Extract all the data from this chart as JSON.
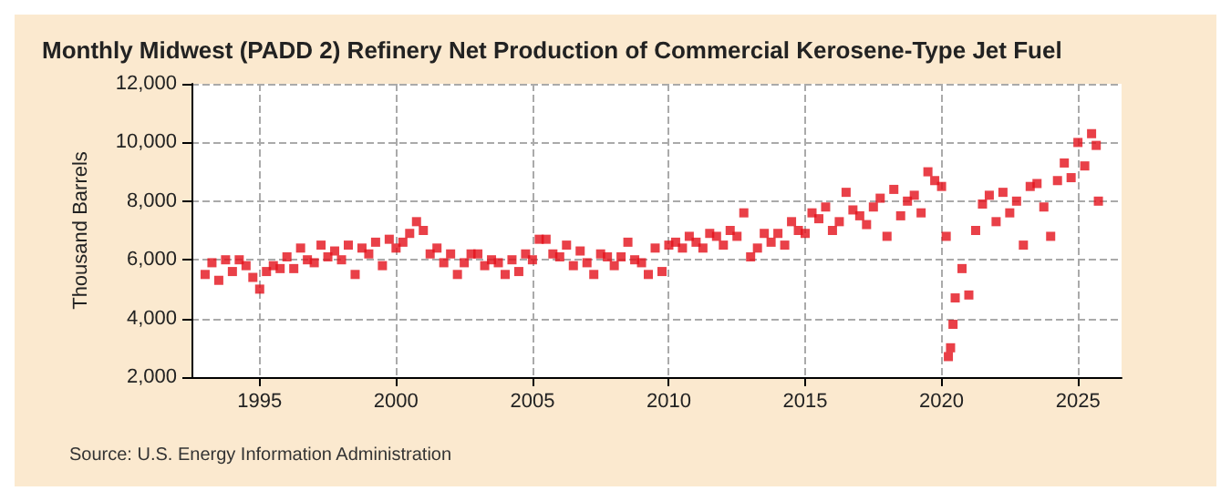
{
  "chart_data": {
    "type": "scatter",
    "title": "Monthly Midwest (PADD 2) Refinery Net Production of Commercial Kerosene-Type Jet Fuel",
    "ylabel": "Thousand Barrels",
    "annotations": [
      "Source: U.S. Energy Information Administration"
    ],
    "x": [
      1993.0,
      1993.25,
      1993.5,
      1993.75,
      1994.0,
      1994.25,
      1994.5,
      1994.75,
      1995.0,
      1995.25,
      1995.5,
      1995.75,
      1996.0,
      1996.25,
      1996.5,
      1996.75,
      1997.0,
      1997.25,
      1997.5,
      1997.75,
      1998.0,
      1998.25,
      1998.5,
      1998.75,
      1999.0,
      1999.25,
      1999.5,
      1999.75,
      2000.0,
      2000.25,
      2000.5,
      2000.75,
      2001.0,
      2001.25,
      2001.5,
      2001.75,
      2002.0,
      2002.25,
      2002.5,
      2002.75,
      2003.0,
      2003.25,
      2003.5,
      2003.75,
      2004.0,
      2004.25,
      2004.5,
      2004.75,
      2005.0,
      2005.25,
      2005.5,
      2005.75,
      2006.0,
      2006.25,
      2006.5,
      2006.75,
      2007.0,
      2007.25,
      2007.5,
      2007.75,
      2008.0,
      2008.25,
      2008.5,
      2008.75,
      2009.0,
      2009.25,
      2009.5,
      2009.75,
      2010.0,
      2010.25,
      2010.5,
      2010.75,
      2011.0,
      2011.25,
      2011.5,
      2011.75,
      2012.0,
      2012.25,
      2012.5,
      2012.75,
      2013.0,
      2013.25,
      2013.5,
      2013.75,
      2014.0,
      2014.25,
      2014.5,
      2014.75,
      2015.0,
      2015.25,
      2015.5,
      2015.75,
      2016.0,
      2016.25,
      2016.5,
      2016.75,
      2017.0,
      2017.25,
      2017.5,
      2017.75,
      2018.0,
      2018.25,
      2018.5,
      2018.75,
      2019.0,
      2019.25,
      2019.5,
      2019.75,
      2020.0,
      2020.17,
      2020.25,
      2020.33,
      2020.42,
      2020.5,
      2020.75,
      2021.0,
      2021.25,
      2021.5,
      2021.75,
      2022.0,
      2022.25,
      2022.5,
      2022.75,
      2023.0,
      2023.25,
      2023.5,
      2023.75,
      2024.0,
      2024.25,
      2024.5,
      2024.75,
      2025.0,
      2025.25,
      2025.5,
      2025.67,
      2025.75
    ],
    "series": [
      {
        "color": "#e3101a",
        "values": [
          5500,
          5900,
          5300,
          6000,
          5600,
          6000,
          5800,
          5400,
          5000,
          5600,
          5800,
          5700,
          6100,
          5700,
          6400,
          6000,
          5900,
          6500,
          6100,
          6300,
          6000,
          6500,
          5500,
          6400,
          6200,
          6600,
          5800,
          6700,
          6400,
          6600,
          6900,
          7300,
          7000,
          6200,
          6400,
          5900,
          6200,
          5500,
          5900,
          6200,
          6200,
          5800,
          6000,
          5900,
          5500,
          6000,
          5600,
          6200,
          6000,
          6700,
          6700,
          6200,
          6100,
          6500,
          5800,
          6300,
          5900,
          5500,
          6200,
          6100,
          5800,
          6100,
          6600,
          6000,
          5900,
          5500,
          6400,
          5600,
          6500,
          6600,
          6400,
          6800,
          6600,
          6400,
          6900,
          6800,
          6500,
          7000,
          6800,
          7600,
          6100,
          6400,
          6900,
          6600,
          6900,
          6500,
          7300,
          7000,
          6900,
          7600,
          7400,
          7800,
          7000,
          7300,
          8300,
          7700,
          7500,
          7200,
          7800,
          8100,
          6800,
          8400,
          7500,
          8000,
          8200,
          7600,
          9000,
          8700,
          8500,
          6800,
          2700,
          3000,
          3800,
          4700,
          5700,
          4800,
          7000,
          7900,
          8200,
          7300,
          8300,
          7600,
          8000,
          6500,
          8500,
          8600,
          7800,
          6800,
          8700,
          9300,
          8800,
          10000,
          9200,
          10300,
          9900,
          8000
        ]
      }
    ],
    "xlim": [
      1992.5,
      2026.6
    ],
    "xticks": [
      1995,
      2000,
      2005,
      2010,
      2015,
      2020,
      2025
    ],
    "ylim": [
      2000,
      12000
    ],
    "yticks": [
      {
        "value": 2000,
        "label": "2,000"
      },
      {
        "value": 4000,
        "label": "4,000"
      },
      {
        "value": 6000,
        "label": "6,000"
      },
      {
        "value": 8000,
        "label": "8,000"
      },
      {
        "value": 10000,
        "label": "10,000"
      },
      {
        "value": 12000,
        "label": "12,000"
      }
    ],
    "grid": true,
    "marker": "square"
  }
}
